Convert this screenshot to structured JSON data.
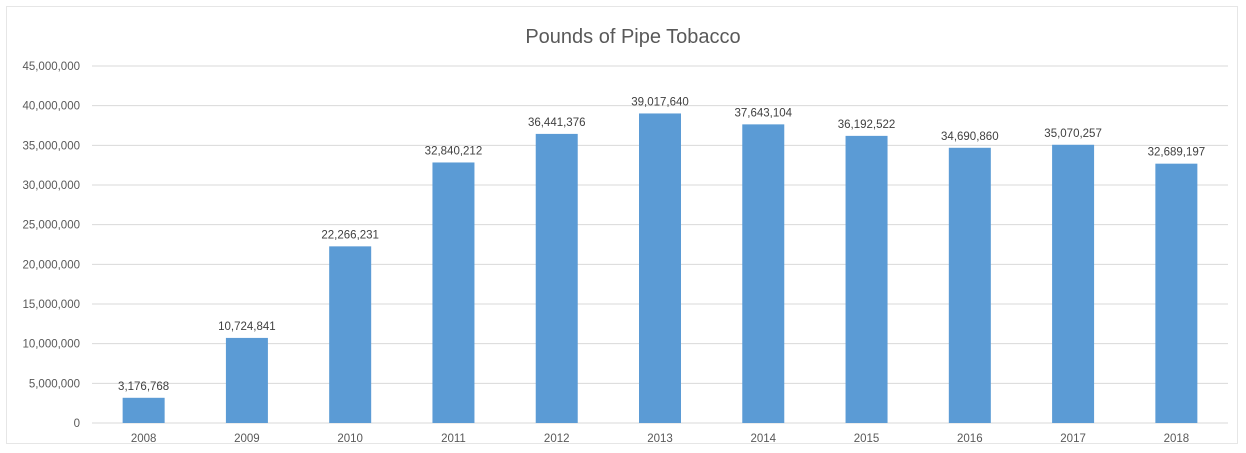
{
  "chart_data": {
    "type": "bar",
    "title": "Pounds of Pipe Tobacco",
    "xlabel": "",
    "ylabel": "",
    "categories": [
      "2008",
      "2009",
      "2010",
      "2011",
      "2012",
      "2013",
      "2014",
      "2015",
      "2016",
      "2017",
      "2018"
    ],
    "values": [
      3176768,
      10724841,
      22266231,
      32840212,
      36441376,
      39017640,
      37643104,
      36192522,
      34690860,
      35070257,
      32689197
    ],
    "data_labels": [
      "3,176,768",
      "10,724,841",
      "22,266,231",
      "32,840,212",
      "36,441,376",
      "39,017,640",
      "37,643,104",
      "36,192,522",
      "34,690,860",
      "35,070,257",
      "32,689,197"
    ],
    "ylim": [
      0,
      45000000
    ],
    "y_ticks": [
      0,
      5000000,
      10000000,
      15000000,
      20000000,
      25000000,
      30000000,
      35000000,
      40000000,
      45000000
    ],
    "y_tick_labels": [
      "0",
      "5,000,000",
      "10,000,000",
      "15,000,000",
      "20,000,000",
      "25,000,000",
      "30,000,000",
      "35,000,000",
      "40,000,000",
      "45,000,000"
    ],
    "grid": true,
    "legend": "none",
    "colors": {
      "bar": "#5b9bd5",
      "grid": "#d9d9d9",
      "text": "#595959"
    }
  }
}
